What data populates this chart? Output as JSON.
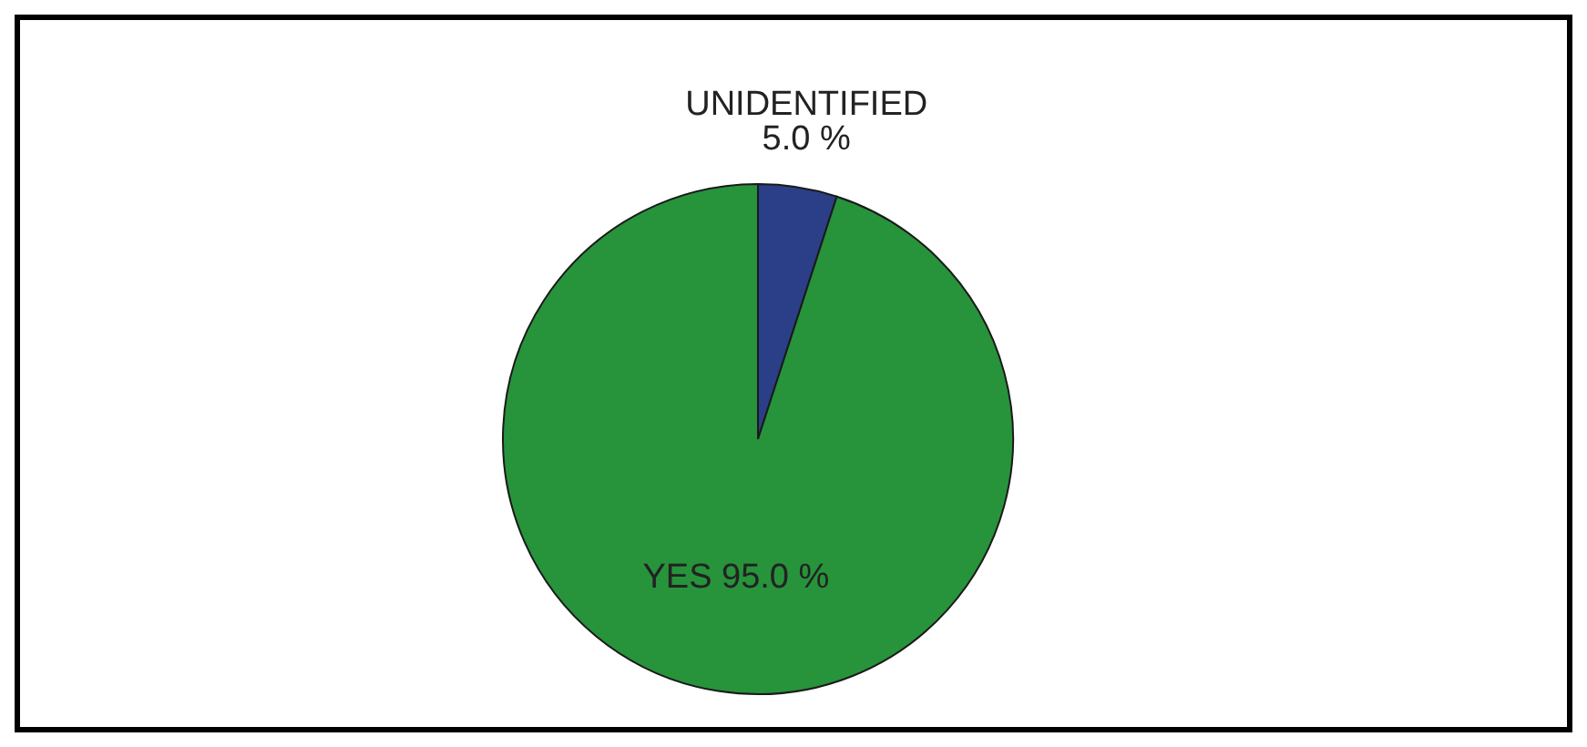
{
  "chart_data": {
    "type": "pie",
    "categories": [
      "UNIDENTIFIED",
      "YES"
    ],
    "values": [
      5.0,
      95.0
    ],
    "colors": [
      "#2a3f87",
      "#27933b"
    ],
    "value_labels": [
      "5.0 %",
      "95.0 %"
    ]
  }
}
